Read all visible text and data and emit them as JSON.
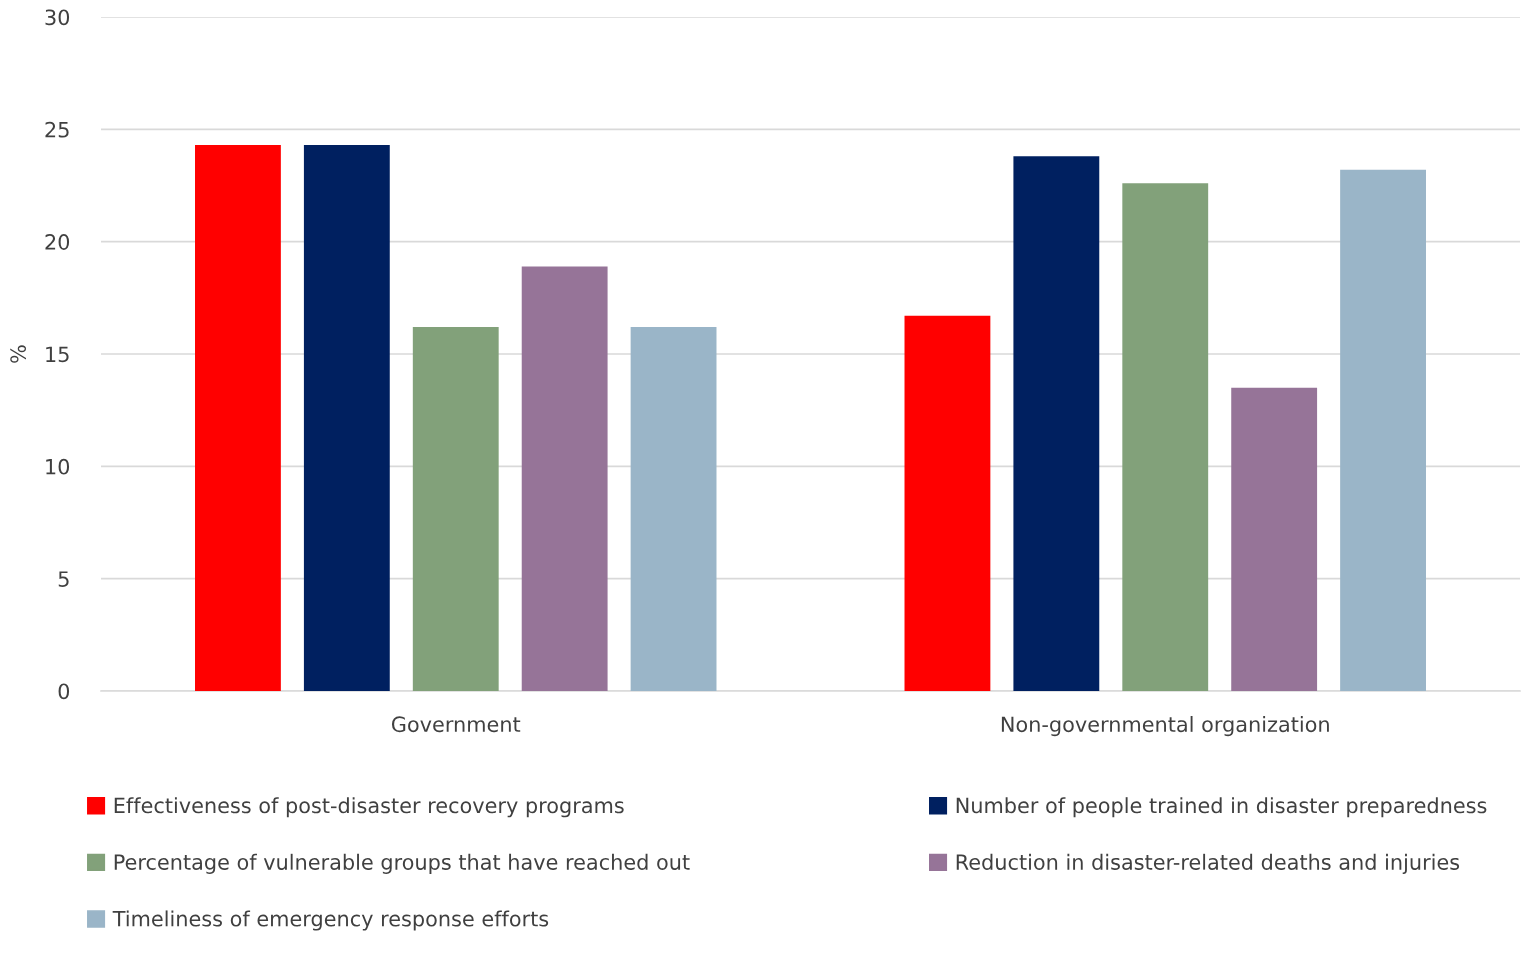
{
  "chart_data": {
    "type": "bar",
    "ylabel": "%",
    "categories": [
      "Government",
      "Non-governmental organization"
    ],
    "series": [
      {
        "name": "Effectiveness of post-disaster recovery programs",
        "color": "#ff0000",
        "values": [
          24.3,
          16.7
        ]
      },
      {
        "name": "Number of people trained in disaster preparedness",
        "color": "#002060",
        "values": [
          24.3,
          23.8
        ]
      },
      {
        "name": "Percentage of vulnerable groups that have reached out",
        "color": "#82a17a",
        "values": [
          16.2,
          22.6
        ]
      },
      {
        "name": "Reduction in disaster-related deaths and injuries",
        "color": "#967498",
        "values": [
          18.9,
          13.5
        ]
      },
      {
        "name": "Timeliness of emergency response efforts",
        "color": "#9ab5c8",
        "values": [
          16.2,
          23.2
        ]
      }
    ],
    "ylim": [
      0,
      30
    ],
    "yticks": [
      0,
      5,
      10,
      15,
      20,
      25,
      30
    ],
    "grid": "y",
    "legend": "bottom"
  }
}
